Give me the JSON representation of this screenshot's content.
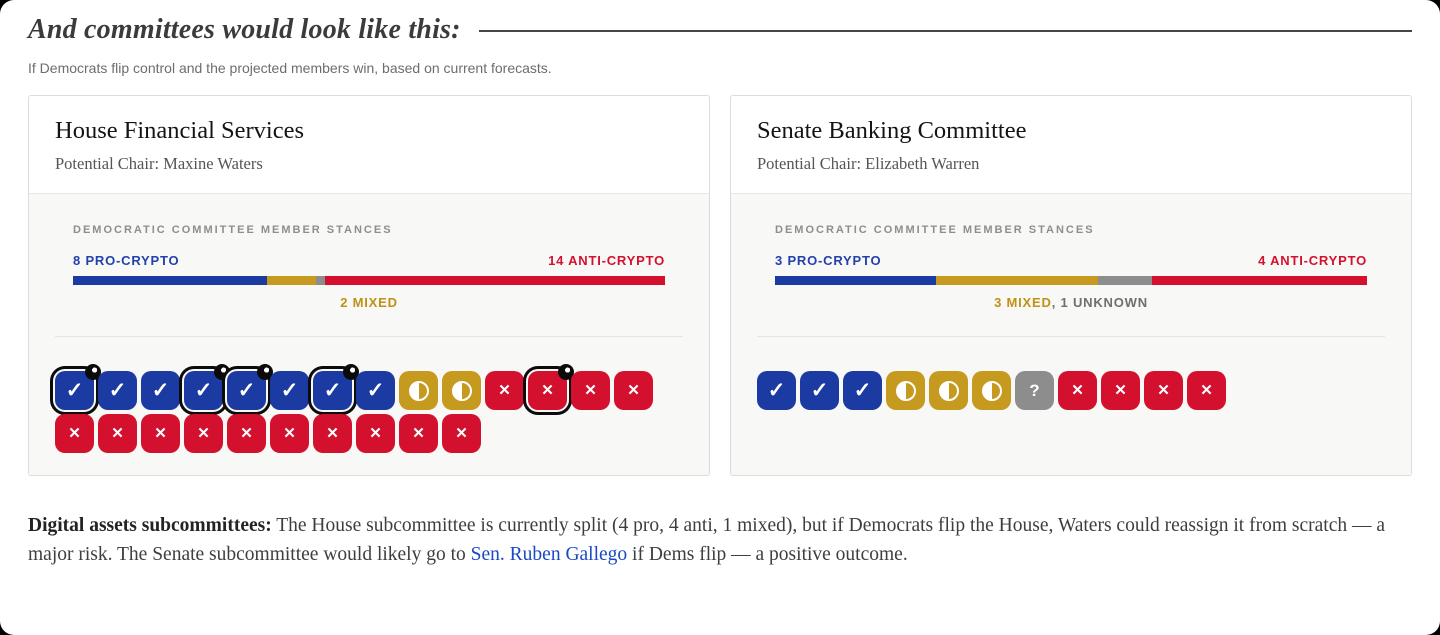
{
  "header": {
    "title": "And committees would look like this:",
    "subtitle": "If Democrats flip control and the projected members win, based on current forecasts."
  },
  "colors": {
    "pro": "#1c3ba2",
    "pro_text": "#2341ae",
    "anti": "#d3112e",
    "mixed": "#c6991f",
    "mixed_text": "#bf9116",
    "unknown": "#8d8d8d",
    "flag_outline": "#0c0c0c",
    "link": "#1b49c4"
  },
  "icons": {
    "pro_check": "✓",
    "anti_x": "✕",
    "unknown_question": "?",
    "mixed": "half-circle"
  },
  "committees": [
    {
      "name": "House Financial Services",
      "chair": "Potential Chair: Maxine Waters",
      "stances_heading": "DEMOCRATIC COMMITTEE MEMBER STANCES",
      "pro_label": "8 PRO-CRYPTO",
      "anti_label": "14 ANTI-CRYPTO",
      "mixed_label": "2 MIXED",
      "unknown_label": "",
      "counts": {
        "pro": 8,
        "mixed": 2,
        "unknown": 0,
        "anti": 14,
        "total": 24
      },
      "bar_segments": [
        {
          "stance": "pro",
          "weight": 8
        },
        {
          "stance": "mixed",
          "weight": 2
        },
        {
          "stance": "unknown",
          "weight": 0.4
        },
        {
          "stance": "anti",
          "weight": 14
        }
      ],
      "members": [
        {
          "stance": "pro",
          "flagged": true
        },
        {
          "stance": "pro"
        },
        {
          "stance": "pro"
        },
        {
          "stance": "pro",
          "flagged": true
        },
        {
          "stance": "pro",
          "flagged": true
        },
        {
          "stance": "pro"
        },
        {
          "stance": "pro",
          "flagged": true
        },
        {
          "stance": "pro"
        },
        {
          "stance": "mixed"
        },
        {
          "stance": "mixed"
        },
        {
          "stance": "anti"
        },
        {
          "stance": "anti",
          "flagged": true
        },
        {
          "stance": "anti"
        },
        {
          "stance": "anti"
        },
        {
          "stance": "anti"
        },
        {
          "stance": "anti"
        },
        {
          "stance": "anti"
        },
        {
          "stance": "anti"
        },
        {
          "stance": "anti"
        },
        {
          "stance": "anti"
        },
        {
          "stance": "anti"
        },
        {
          "stance": "anti"
        },
        {
          "stance": "anti"
        },
        {
          "stance": "anti"
        }
      ]
    },
    {
      "name": "Senate Banking Committee",
      "chair": "Potential Chair: Elizabeth Warren",
      "stances_heading": "DEMOCRATIC COMMITTEE MEMBER STANCES",
      "pro_label": "3 PRO-CRYPTO",
      "anti_label": "4 ANTI-CRYPTO",
      "mixed_label": "3 MIXED",
      "unknown_label": ", 1 UNKNOWN",
      "counts": {
        "pro": 3,
        "mixed": 3,
        "unknown": 1,
        "anti": 4,
        "total": 11
      },
      "bar_segments": [
        {
          "stance": "pro",
          "weight": 3
        },
        {
          "stance": "mixed",
          "weight": 3
        },
        {
          "stance": "unknown",
          "weight": 1
        },
        {
          "stance": "anti",
          "weight": 4
        }
      ],
      "members": [
        {
          "stance": "pro"
        },
        {
          "stance": "pro"
        },
        {
          "stance": "pro"
        },
        {
          "stance": "mixed"
        },
        {
          "stance": "mixed"
        },
        {
          "stance": "mixed"
        },
        {
          "stance": "unknown"
        },
        {
          "stance": "anti"
        },
        {
          "stance": "anti"
        },
        {
          "stance": "anti"
        },
        {
          "stance": "anti"
        }
      ]
    }
  ],
  "footnote": {
    "bold": "Digital assets subcommittees:",
    "before_link": " The House subcommittee is currently split (4 pro, 4 anti, 1 mixed), but if Democrats flip the House, Waters could reassign it from scratch — a major risk. The Senate subcommittee would likely go to ",
    "link": "Sen. Ruben Gallego",
    "after_link": " if Dems flip — a positive outcome."
  },
  "chart_data": [
    {
      "type": "bar",
      "subtype": "stacked-horizontal",
      "title": "House Financial Services — Democratic committee member stances",
      "categories": [
        "Pro-crypto",
        "Mixed",
        "Unknown",
        "Anti-crypto"
      ],
      "values": [
        8,
        2,
        0,
        14
      ],
      "total_members": 24,
      "legend_position": "above-and-below-bar",
      "annotations": [
        "8 PRO-CRYPTO",
        "14 ANTI-CRYPTO",
        "2 MIXED"
      ],
      "waffle_tiles": {
        "pro": 8,
        "mixed": 2,
        "anti": 14,
        "flagged_pro": 4,
        "flagged_anti": 1
      }
    },
    {
      "type": "bar",
      "subtype": "stacked-horizontal",
      "title": "Senate Banking Committee — Democratic committee member stances",
      "categories": [
        "Pro-crypto",
        "Mixed",
        "Unknown",
        "Anti-crypto"
      ],
      "values": [
        3,
        3,
        1,
        4
      ],
      "total_members": 11,
      "legend_position": "above-and-below-bar",
      "annotations": [
        "3 PRO-CRYPTO",
        "4 ANTI-CRYPTO",
        "3 MIXED, 1 UNKNOWN"
      ],
      "waffle_tiles": {
        "pro": 3,
        "mixed": 3,
        "unknown": 1,
        "anti": 4
      }
    }
  ]
}
